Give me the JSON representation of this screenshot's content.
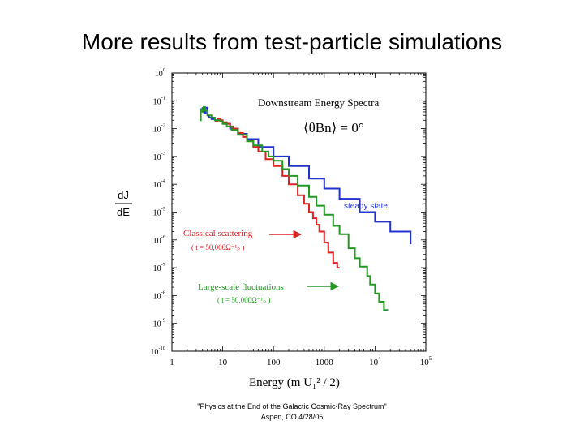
{
  "slide": {
    "title": "More results from test-particle simulations",
    "footer_line1": "\"Physics at the End of the Galactic Cosmic-Ray Spectrum\"",
    "footer_line2": "Aspen, CO 4/28/05"
  },
  "chart_data": {
    "type": "line",
    "title": "Downstream Energy Spectra",
    "subtitle": "⟨θBn⟩ = 0°",
    "xlabel": "Energy (m U₁² / 2)",
    "ylabel_num": "dJ",
    "ylabel_den": "dE",
    "xscale": "log",
    "yscale": "log",
    "xlim": [
      1,
      100000
    ],
    "ylim": [
      1e-10,
      1
    ],
    "x_ticks": [
      {
        "value": 1,
        "label": "1",
        "exp": ""
      },
      {
        "value": 10,
        "label": "10",
        "exp": ""
      },
      {
        "value": 100,
        "label": "100",
        "exp": ""
      },
      {
        "value": 1000,
        "label": "1000",
        "exp": ""
      },
      {
        "value": 10000,
        "label": "10",
        "exp": "4"
      },
      {
        "value": 100000,
        "label": "10",
        "exp": "5"
      }
    ],
    "y_ticks": [
      {
        "value": 1,
        "label": "10",
        "exp": "0"
      },
      {
        "value": 0.1,
        "label": "10",
        "exp": "-1"
      },
      {
        "value": 0.01,
        "label": "10",
        "exp": "-2"
      },
      {
        "value": 0.001,
        "label": "10",
        "exp": "-3"
      },
      {
        "value": 0.0001,
        "label": "10",
        "exp": "-4"
      },
      {
        "value": 1e-05,
        "label": "10",
        "exp": "-5"
      },
      {
        "value": 1e-06,
        "label": "10",
        "exp": "-6"
      },
      {
        "value": 1e-07,
        "label": "10",
        "exp": "-7"
      },
      {
        "value": 1e-08,
        "label": "10",
        "exp": "-8"
      },
      {
        "value": 1e-09,
        "label": "10",
        "exp": "-9"
      },
      {
        "value": 1e-10,
        "label": "10",
        "exp": "-10"
      }
    ],
    "series": [
      {
        "name": "steady state",
        "color": "#2233cc",
        "x": [
          3.5,
          4,
          4.3,
          4.6,
          5,
          5.4,
          6,
          7,
          8,
          9,
          10,
          14,
          20,
          30,
          50,
          100,
          200,
          500,
          1000,
          2000,
          5000,
          10000,
          20000,
          50000
        ],
        "y": [
          0.05,
          0.055,
          0.035,
          0.057,
          0.03,
          0.025,
          0.022,
          0.02,
          0.02,
          0.018,
          0.015,
          0.01,
          0.0065,
          0.0042,
          0.0022,
          0.001,
          0.00045,
          0.00016,
          7e-05,
          3e-05,
          1e-05,
          4.5e-06,
          2e-06,
          7e-07
        ]
      },
      {
        "name": "Classical scattering",
        "color": "#dd2222",
        "x": [
          7,
          8,
          9,
          10,
          12,
          14,
          16,
          20,
          25,
          30,
          40,
          50,
          70,
          100,
          150,
          200,
          300,
          400,
          500,
          600,
          700,
          800,
          1000,
          1200,
          1500,
          1800,
          2000
        ],
        "y": [
          0.018,
          0.022,
          0.02,
          0.017,
          0.015,
          0.012,
          0.01,
          0.007,
          0.005,
          0.0036,
          0.0022,
          0.0015,
          0.0008,
          0.00045,
          0.0002,
          0.0001,
          4e-05,
          2e-05,
          1e-05,
          6e-06,
          3.5e-06,
          2e-06,
          8e-07,
          3.5e-07,
          1.5e-07,
          1e-07,
          1e-07
        ]
      },
      {
        "name": "Large-scale fluctuations",
        "color": "#229922",
        "x": [
          3.5,
          3.7,
          4,
          4.2,
          4.5,
          5,
          6,
          7,
          8,
          9,
          10,
          12,
          15,
          20,
          30,
          40,
          60,
          80,
          100,
          150,
          200,
          300,
          500,
          700,
          1000,
          1500,
          2000,
          3000,
          4000,
          5000,
          7000,
          8000,
          10000,
          12000,
          15000,
          18000
        ],
        "y": [
          0.02,
          0.05,
          0.04,
          0.06,
          0.045,
          0.03,
          0.025,
          0.02,
          0.02,
          0.018,
          0.015,
          0.012,
          0.009,
          0.006,
          0.0035,
          0.0025,
          0.0015,
          0.001,
          0.0007,
          0.00035,
          0.0002,
          9e-05,
          3.5e-05,
          1.7e-05,
          8e-06,
          3.2e-06,
          1.6e-06,
          5e-07,
          2.2e-07,
          1.1e-07,
          5e-08,
          2.5e-08,
          1.2e-08,
          6e-09,
          3e-09,
          3e-09
        ]
      }
    ],
    "annotations": [
      {
        "text": "steady state",
        "target_series": "steady state"
      },
      {
        "text": "Classical scattering",
        "subtext": "( t = 50,000Ω⁻¹ₚ )",
        "target_series": "Classical scattering"
      },
      {
        "text": "Large-scale fluctuations",
        "subtext": "( t = 50,000Ω⁻¹ₚ )",
        "target_series": "Large-scale fluctuations"
      }
    ]
  }
}
